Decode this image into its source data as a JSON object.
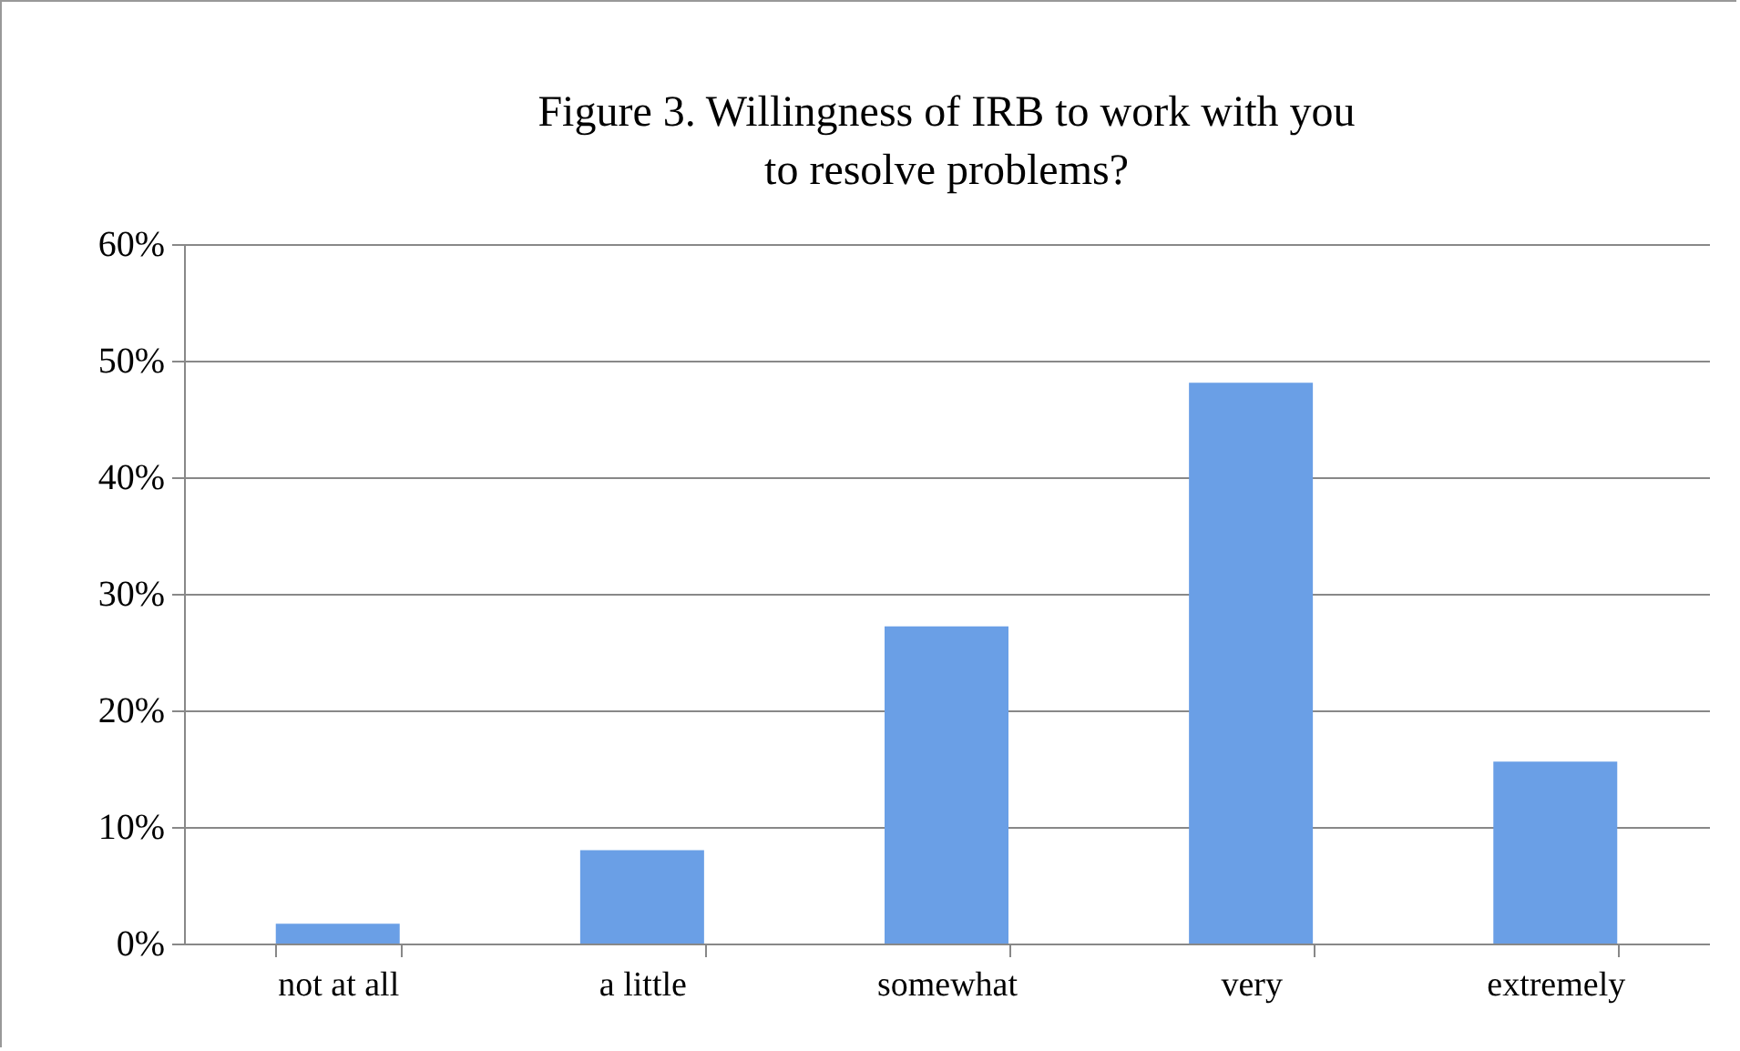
{
  "chart_data": {
    "type": "bar",
    "title": "Figure 3. Willingness of IRB to work with you\nto resolve problems?",
    "categories": [
      "not at all",
      "a little",
      "somewhat",
      "very",
      "extremely"
    ],
    "values": [
      1.7,
      8,
      27.2,
      48.1,
      15.6
    ],
    "color": "#6a9fe6",
    "ylim": [
      0,
      60
    ],
    "yticks": [
      {
        "value": 0,
        "label": "0%"
      },
      {
        "value": 10,
        "label": "10%"
      },
      {
        "value": 20,
        "label": "20%"
      },
      {
        "value": 30,
        "label": "30%"
      },
      {
        "value": 40,
        "label": "40%"
      },
      {
        "value": 50,
        "label": "50%"
      },
      {
        "value": 60,
        "label": "60%"
      }
    ],
    "grid": "y"
  }
}
